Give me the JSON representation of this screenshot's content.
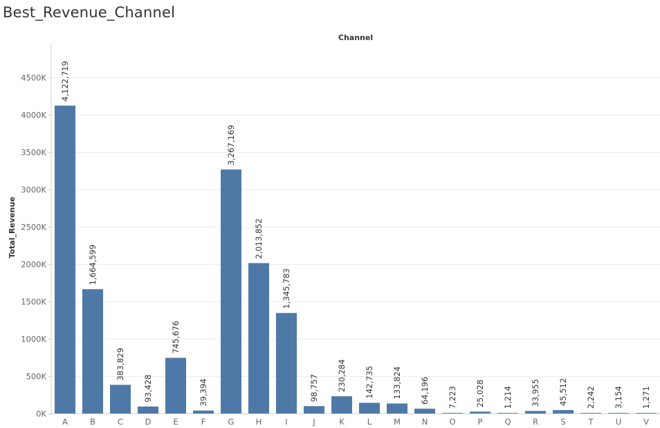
{
  "sheet": {
    "title": "Best_Revenue_Channel"
  },
  "chart_data": {
    "type": "bar",
    "title": "Best_Revenue_Channel",
    "column_header": "Channel",
    "xlabel": "",
    "ylabel": "Total_Revenue",
    "categories": [
      "A",
      "B",
      "C",
      "D",
      "E",
      "F",
      "G",
      "H",
      "I",
      "J",
      "K",
      "L",
      "M",
      "N",
      "O",
      "P",
      "Q",
      "R",
      "S",
      "T",
      "U",
      "V"
    ],
    "values": [
      4122719,
      1664599,
      383829,
      93428,
      745676,
      39394,
      3267169,
      2013852,
      1345783,
      98757,
      230284,
      142735,
      133824,
      64196,
      7223,
      25028,
      1214,
      33955,
      45512,
      2242,
      3154,
      1271
    ],
    "data_labels": [
      "4,122,719",
      "1,664,599",
      "383,829",
      "93,428",
      "745,676",
      "39,394",
      "3,267,169",
      "2,013,852",
      "1,345,783",
      "98,757",
      "230,284",
      "142,735",
      "133,824",
      "64,196",
      "7,223",
      "25,028",
      "1,214",
      "33,955",
      "45,512",
      "2,242",
      "3,154",
      "1,271"
    ],
    "y_ticks": [
      0,
      500000,
      1000000,
      1500000,
      2000000,
      2500000,
      3000000,
      3500000,
      4000000,
      4500000
    ],
    "y_tick_labels": [
      "0K",
      "500K",
      "1000K",
      "1500K",
      "2000K",
      "2500K",
      "3000K",
      "3500K",
      "4000K",
      "4500K"
    ],
    "ylim": [
      0,
      4650000
    ],
    "grid": true,
    "legend": "none",
    "colors": {
      "bar": "#4e79a7",
      "grid": "#ececec",
      "axis": "#d0d0d0"
    }
  }
}
